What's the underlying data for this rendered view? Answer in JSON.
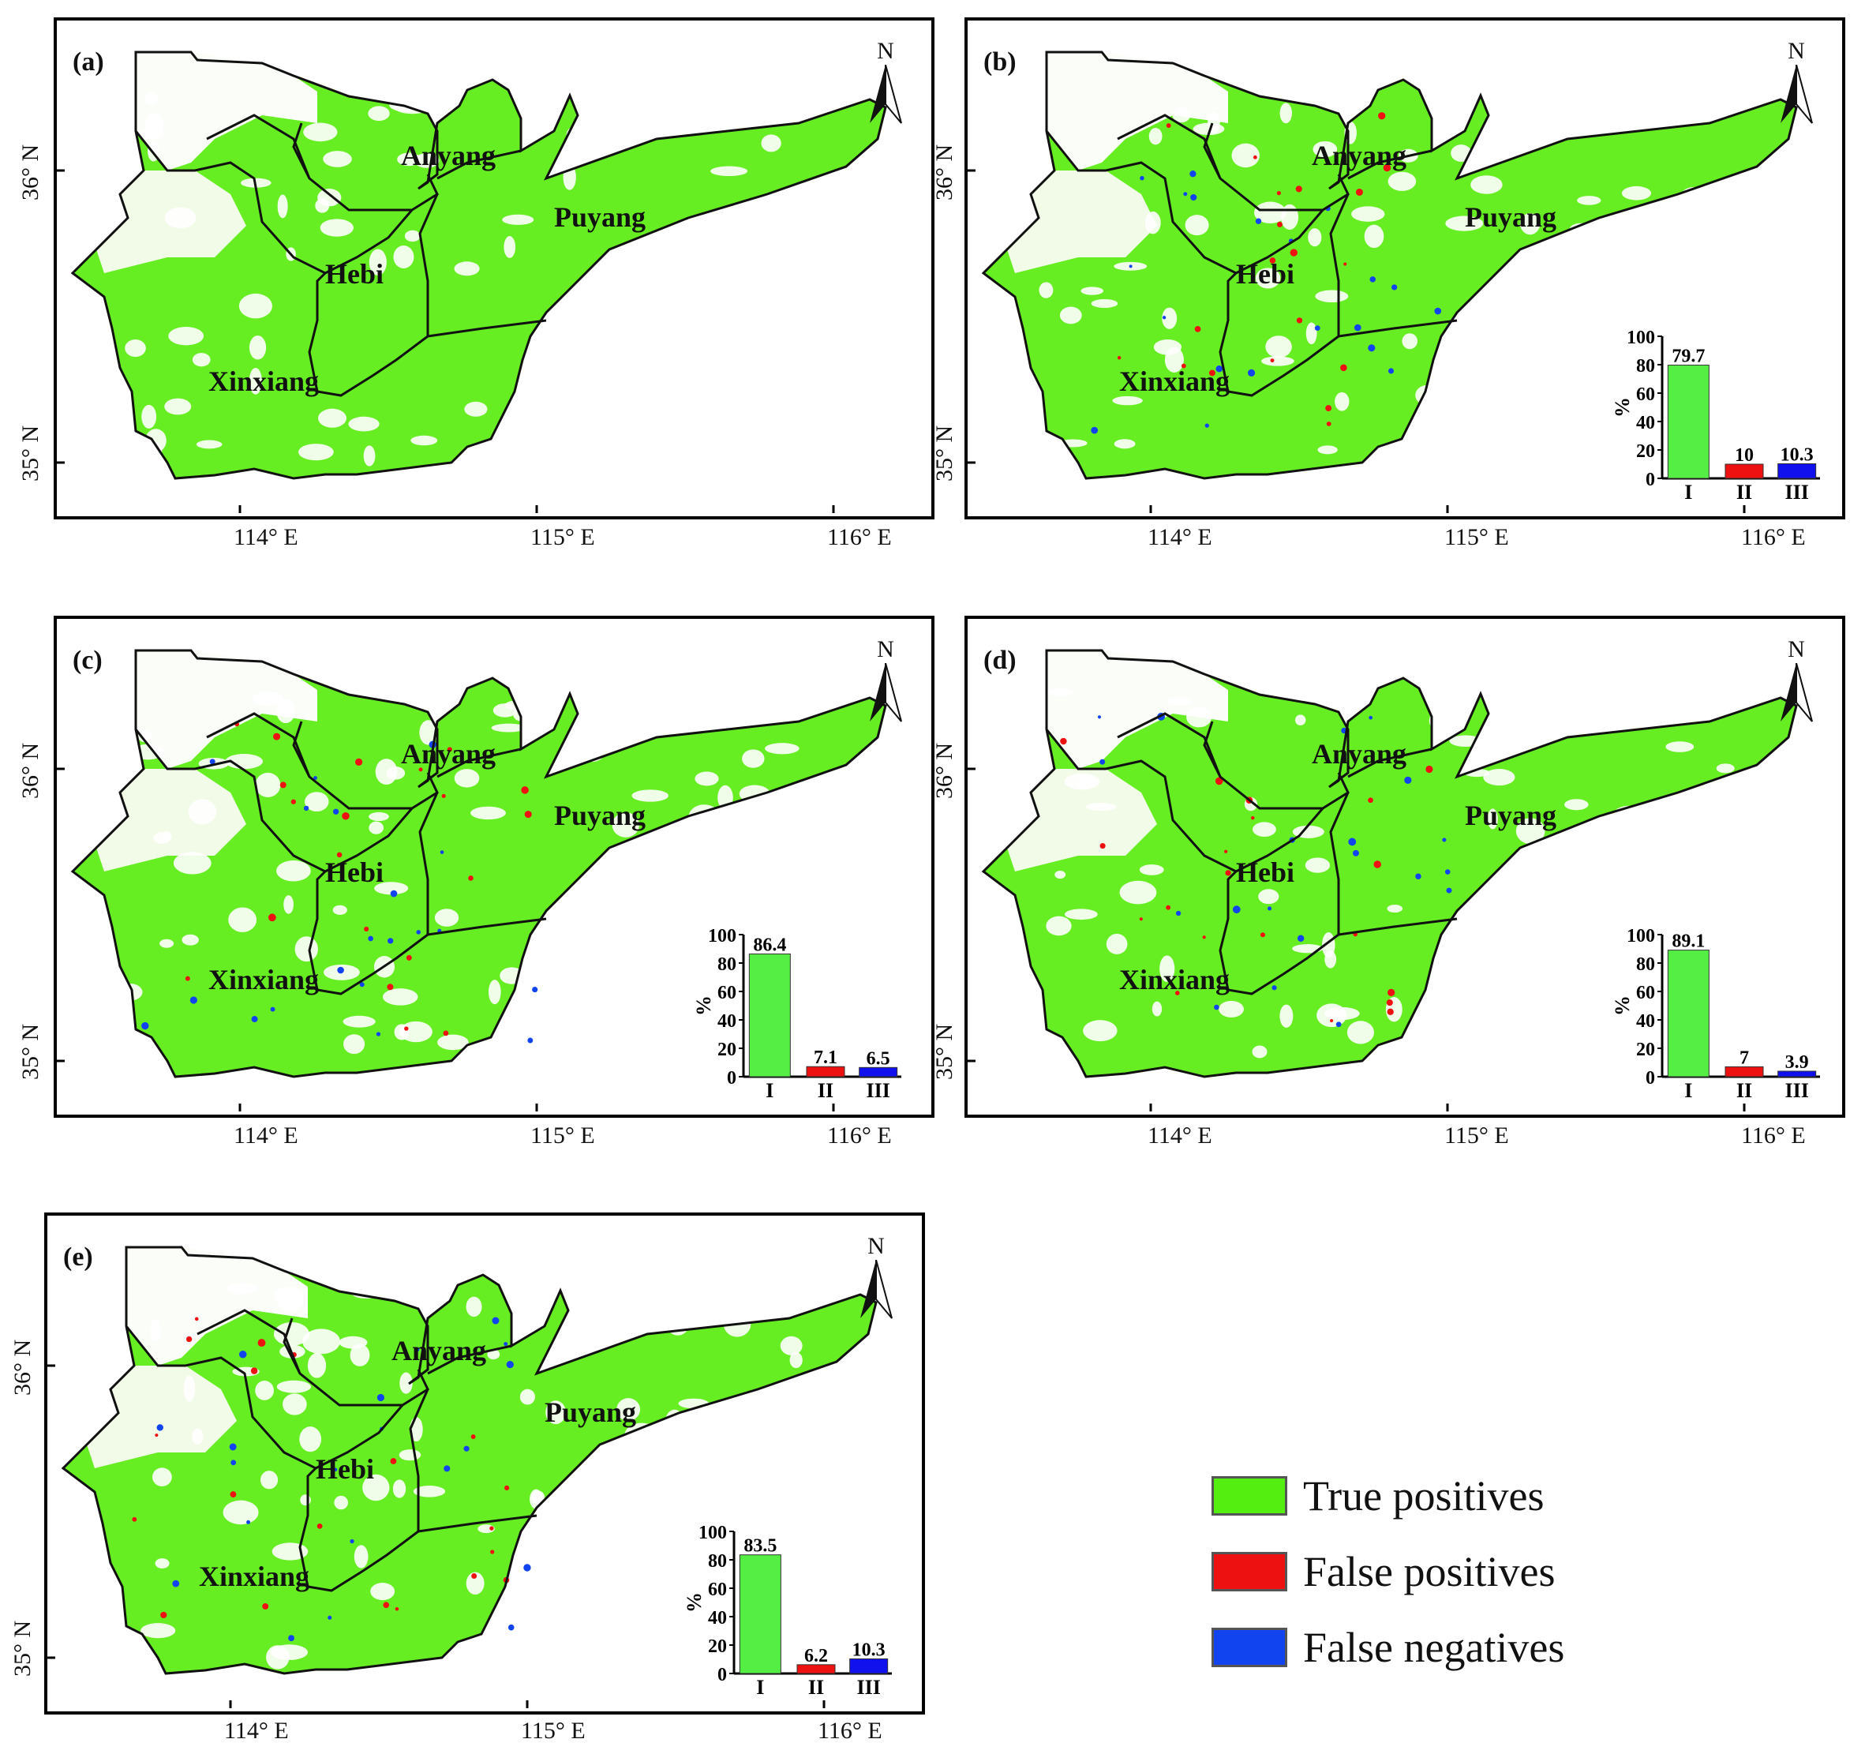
{
  "panels": [
    {
      "label": "(a)",
      "north": "N",
      "cities": [
        "Anyang",
        "Puyang",
        "Hebi",
        "Xinxiang"
      ],
      "lon_ticks": [
        "114° E",
        "115° E",
        "116° E"
      ],
      "lat_ticks": [
        "36° N",
        "35° N"
      ]
    },
    {
      "label": "(b)",
      "north": "N",
      "cities": [
        "Anyang",
        "Puyang",
        "Hebi",
        "Xinxiang"
      ],
      "lon_ticks": [
        "114° E",
        "115° E",
        "116° E"
      ],
      "lat_ticks": [
        "36° N",
        "35° N"
      ]
    },
    {
      "label": "(c)",
      "north": "N",
      "cities": [
        "Anyang",
        "Puyang",
        "Hebi",
        "Xinxiang"
      ],
      "lon_ticks": [
        "114° E",
        "115° E",
        "116° E"
      ],
      "lat_ticks": [
        "36° N",
        "35° N"
      ]
    },
    {
      "label": "(d)",
      "north": "N",
      "cities": [
        "Anyang",
        "Puyang",
        "Hebi",
        "Xinxiang"
      ],
      "lon_ticks": [
        "114° E",
        "115° E",
        "116° E"
      ],
      "lat_ticks": [
        "36° N",
        "35° N"
      ]
    },
    {
      "label": "(e)",
      "north": "N",
      "cities": [
        "Anyang",
        "Puyang",
        "Hebi",
        "Xinxiang"
      ],
      "lon_ticks": [
        "114° E",
        "115° E",
        "116° E"
      ],
      "lat_ticks": [
        "36° N",
        "35° N"
      ]
    }
  ],
  "legend": [
    {
      "label": "True  positives",
      "color": "#55ee11"
    },
    {
      "label": "False positives",
      "color": "#ee1111"
    },
    {
      "label": "False negatives",
      "color": "#1144ee"
    }
  ],
  "chart_data": [
    {
      "panel": "(b)",
      "type": "bar",
      "categories": [
        "I",
        "II",
        "III"
      ],
      "values": [
        79.7,
        10,
        10.3
      ],
      "value_labels": [
        "79.7",
        "10",
        "10.3"
      ],
      "ylabel": "%",
      "ylim": [
        0,
        100
      ],
      "yticks": [
        "0",
        "20",
        "40",
        "60",
        "80",
        "100"
      ],
      "colors": [
        "#55ee44",
        "#ee1111",
        "#1111ee"
      ]
    },
    {
      "panel": "(c)",
      "type": "bar",
      "categories": [
        "I",
        "II",
        "III"
      ],
      "values": [
        86.4,
        7.1,
        6.5
      ],
      "value_labels": [
        "86.4",
        "7.1",
        "6.5"
      ],
      "ylabel": "%",
      "ylim": [
        0,
        100
      ],
      "yticks": [
        "0",
        "20",
        "40",
        "60",
        "80",
        "100"
      ],
      "colors": [
        "#55ee44",
        "#ee1111",
        "#1111ee"
      ]
    },
    {
      "panel": "(d)",
      "type": "bar",
      "categories": [
        "I",
        "II",
        "III"
      ],
      "values": [
        89.1,
        7,
        3.9
      ],
      "value_labels": [
        "89.1",
        "7",
        "3.9"
      ],
      "ylabel": "%",
      "ylim": [
        0,
        100
      ],
      "yticks": [
        "0",
        "20",
        "40",
        "60",
        "80",
        "100"
      ],
      "colors": [
        "#55ee44",
        "#ee1111",
        "#1111ee"
      ]
    },
    {
      "panel": "(e)",
      "type": "bar",
      "categories": [
        "I",
        "II",
        "III"
      ],
      "values": [
        83.5,
        6.2,
        10.3
      ],
      "value_labels": [
        "83.5",
        "6.2",
        "10.3"
      ],
      "ylabel": "%",
      "ylim": [
        0,
        100
      ],
      "yticks": [
        "0",
        "20",
        "40",
        "60",
        "80",
        "100"
      ],
      "colors": [
        "#55ee44",
        "#ee1111",
        "#1111ee"
      ]
    }
  ]
}
